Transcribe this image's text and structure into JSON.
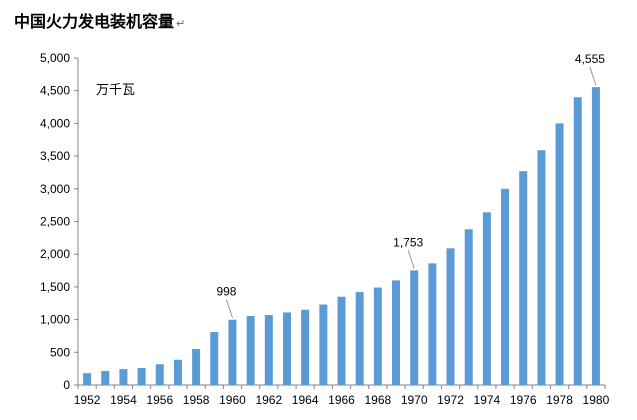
{
  "title": "中国火力发电装机容量",
  "title_mark": "↵",
  "chart_data": {
    "type": "bar",
    "title": "中国火力发电装机容量",
    "unit_label": "万千瓦",
    "xlabel": "",
    "ylabel": "",
    "ylim": [
      0,
      5000
    ],
    "yticks": [
      "0",
      "500",
      "1,000",
      "1,500",
      "2,000",
      "2,500",
      "3,000",
      "3,500",
      "4,000",
      "4,500",
      "5,000"
    ],
    "ytick_values": [
      0,
      500,
      1000,
      1500,
      2000,
      2500,
      3000,
      3500,
      4000,
      4500,
      5000
    ],
    "categories": [
      "1952",
      "1953",
      "1954",
      "1955",
      "1956",
      "1957",
      "1958",
      "1959",
      "1960",
      "1961",
      "1962",
      "1963",
      "1964",
      "1965",
      "1966",
      "1967",
      "1968",
      "1969",
      "1970",
      "1971",
      "1972",
      "1973",
      "1974",
      "1975",
      "1976",
      "1977",
      "1978",
      "1979",
      "1980"
    ],
    "xtick_labels": [
      "1952",
      "1954",
      "1956",
      "1958",
      "1960",
      "1962",
      "1964",
      "1966",
      "1968",
      "1970",
      "1972",
      "1974",
      "1976",
      "1978",
      "1980"
    ],
    "values": [
      181,
      213,
      243,
      260,
      317,
      386,
      550,
      810,
      998,
      1055,
      1070,
      1110,
      1150,
      1230,
      1350,
      1420,
      1490,
      1600,
      1753,
      1860,
      2090,
      2380,
      2640,
      3000,
      3270,
      3590,
      4000,
      4400,
      4555
    ],
    "bar_color": "#5B9BD5",
    "annotations": [
      {
        "category": "1960",
        "text": "998"
      },
      {
        "category": "1970",
        "text": "1,753"
      },
      {
        "category": "1980",
        "text": "4,555"
      }
    ],
    "grid": false
  }
}
